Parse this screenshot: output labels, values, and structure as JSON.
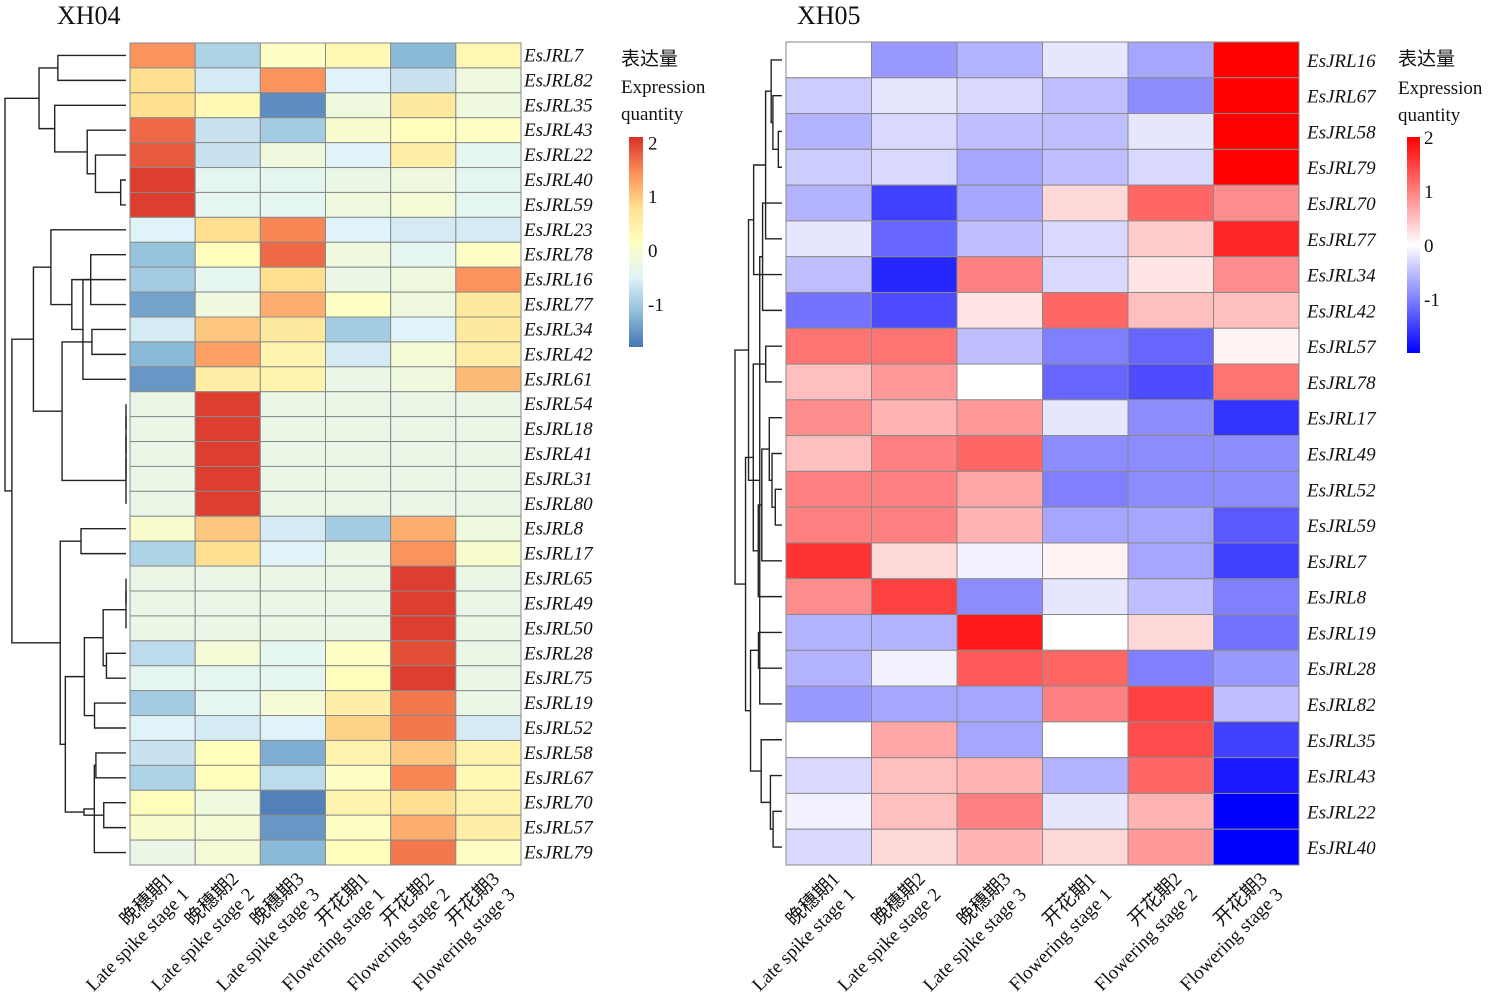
{
  "chart_data": [
    {
      "type": "heatmap",
      "title": "XH04",
      "columns": [
        {
          "zh": "晚穗期1",
          "en": "Late spike stage 1"
        },
        {
          "zh": "晚穗期2",
          "en": "Late spike stage 2"
        },
        {
          "zh": "晚穗期3",
          "en": "Late spike stage 3"
        },
        {
          "zh": "开花期1",
          "en": "Flowering stage 1"
        },
        {
          "zh": "开花期2",
          "en": "Flowering stage 2"
        },
        {
          "zh": "开花期3",
          "en": "Flowering stage 3"
        }
      ],
      "rows": [
        "EsJRL7",
        "EsJRL82",
        "EsJRL35",
        "EsJRL43",
        "EsJRL22",
        "EsJRL40",
        "EsJRL59",
        "EsJRL23",
        "EsJRL78",
        "EsJRL16",
        "EsJRL77",
        "EsJRL34",
        "EsJRL42",
        "EsJRL61",
        "EsJRL54",
        "EsJRL18",
        "EsJRL41",
        "EsJRL31",
        "EsJRL80",
        "EsJRL8",
        "EsJRL17",
        "EsJRL65",
        "EsJRL49",
        "EsJRL50",
        "EsJRL28",
        "EsJRL75",
        "EsJRL19",
        "EsJRL52",
        "EsJRL58",
        "EsJRL67",
        "EsJRL70",
        "EsJRL57",
        "EsJRL79"
      ],
      "values": [
        [
          1.4,
          -0.9,
          0.1,
          0.3,
          -1.2,
          0.3
        ],
        [
          0.8,
          -0.6,
          1.4,
          -0.5,
          -0.7,
          -0.2
        ],
        [
          0.8,
          0.3,
          -1.6,
          -0.2,
          0.6,
          -0.2
        ],
        [
          1.7,
          -0.7,
          -1.0,
          0.0,
          0.2,
          0.1
        ],
        [
          1.8,
          -0.7,
          -0.2,
          -0.5,
          0.5,
          -0.4
        ],
        [
          2.0,
          -0.4,
          -0.4,
          -0.3,
          -0.2,
          -0.4
        ],
        [
          2.0,
          -0.4,
          -0.4,
          -0.2,
          -0.1,
          -0.4
        ],
        [
          -0.5,
          0.8,
          1.5,
          -0.5,
          -0.6,
          -0.6
        ],
        [
          -1.1,
          0.2,
          1.7,
          -0.2,
          -0.4,
          0.1
        ],
        [
          -1.0,
          -0.4,
          0.8,
          -0.3,
          -0.2,
          1.4
        ],
        [
          -1.4,
          -0.2,
          1.2,
          0.1,
          -0.2,
          0.6
        ],
        [
          -0.6,
          1.0,
          0.6,
          -1.0,
          -0.5,
          0.6
        ],
        [
          -1.2,
          1.3,
          0.4,
          -0.6,
          -0.1,
          0.5
        ],
        [
          -1.5,
          0.5,
          0.4,
          -0.3,
          -0.2,
          1.1
        ],
        [
          -0.3,
          2.0,
          -0.3,
          -0.3,
          -0.3,
          -0.3
        ],
        [
          -0.3,
          2.0,
          -0.3,
          -0.3,
          -0.3,
          -0.3
        ],
        [
          -0.3,
          2.0,
          -0.3,
          -0.3,
          -0.3,
          -0.3
        ],
        [
          -0.3,
          2.0,
          -0.3,
          -0.3,
          -0.3,
          -0.3
        ],
        [
          -0.3,
          2.0,
          -0.3,
          -0.3,
          -0.3,
          -0.3
        ],
        [
          0.0,
          1.0,
          -0.6,
          -1.0,
          1.2,
          -0.2
        ],
        [
          -0.9,
          0.8,
          -0.5,
          -0.3,
          1.4,
          0.0
        ],
        [
          -0.3,
          -0.3,
          -0.3,
          -0.3,
          2.0,
          -0.3
        ],
        [
          -0.3,
          -0.3,
          -0.3,
          -0.3,
          2.0,
          -0.3
        ],
        [
          -0.3,
          -0.3,
          -0.3,
          -0.3,
          2.0,
          -0.3
        ],
        [
          -0.8,
          -0.1,
          -0.4,
          0.1,
          1.9,
          -0.3
        ],
        [
          -0.4,
          -0.4,
          -0.4,
          0.2,
          2.0,
          -0.3
        ],
        [
          -1.0,
          -0.4,
          -0.1,
          0.5,
          1.6,
          -0.3
        ],
        [
          -0.5,
          -0.6,
          -0.5,
          0.9,
          1.6,
          -0.6
        ],
        [
          -0.7,
          0.2,
          -1.3,
          0.4,
          1.0,
          0.4
        ],
        [
          -0.9,
          0.2,
          -0.8,
          0.1,
          1.5,
          0.3
        ],
        [
          0.2,
          -0.2,
          -1.7,
          0.4,
          0.8,
          0.4
        ],
        [
          0.0,
          -0.1,
          -1.5,
          0.1,
          1.2,
          0.5
        ],
        [
          -0.3,
          -0.1,
          -1.2,
          0.2,
          1.6,
          0.1
        ]
      ],
      "colorbar": {
        "title_zh": "表达量",
        "title_en": "Expression quantity",
        "ticks": [
          2,
          1,
          0,
          -1
        ],
        "range": [
          -1.8,
          2.1
        ],
        "colors": [
          "#4575b4",
          "#91bfdb",
          "#e0f3f8",
          "#ffffbf",
          "#fee090",
          "#fc8d59",
          "#d73027"
        ]
      },
      "dendrogram": "rows"
    },
    {
      "type": "heatmap",
      "title": "XH05",
      "columns": [
        {
          "zh": "晚穗期1",
          "en": "Late spike stage 1"
        },
        {
          "zh": "晚穗期2",
          "en": "Late spike stage 2"
        },
        {
          "zh": "晚穗期3",
          "en": "Late spike stage 3"
        },
        {
          "zh": "开花期1",
          "en": "Flowering stage 1"
        },
        {
          "zh": "开花期2",
          "en": "Flowering stage 2"
        },
        {
          "zh": "开花期3",
          "en": "Flowering stage 3"
        }
      ],
      "rows": [
        "EsJRL16",
        "EsJRL67",
        "EsJRL58",
        "EsJRL79",
        "EsJRL70",
        "EsJRL77",
        "EsJRL34",
        "EsJRL42",
        "EsJRL57",
        "EsJRL78",
        "EsJRL17",
        "EsJRL49",
        "EsJRL52",
        "EsJRL59",
        "EsJRL7",
        "EsJRL8",
        "EsJRL19",
        "EsJRL28",
        "EsJRL82",
        "EsJRL35",
        "EsJRL43",
        "EsJRL22",
        "EsJRL40"
      ],
      "values": [
        [
          0.0,
          -0.8,
          -0.6,
          -0.2,
          -0.7,
          2.0
        ],
        [
          -0.4,
          -0.2,
          -0.3,
          -0.5,
          -0.9,
          2.0
        ],
        [
          -0.6,
          -0.3,
          -0.5,
          -0.5,
          -0.2,
          2.0
        ],
        [
          -0.4,
          -0.3,
          -0.7,
          -0.5,
          -0.3,
          2.0
        ],
        [
          -0.6,
          -1.5,
          -0.7,
          0.3,
          1.2,
          0.9
        ],
        [
          -0.2,
          -1.2,
          -0.5,
          -0.3,
          0.4,
          1.7
        ],
        [
          -0.5,
          -1.7,
          1.0,
          -0.3,
          0.2,
          0.9
        ],
        [
          -1.1,
          -1.4,
          0.2,
          1.2,
          0.5,
          0.5
        ],
        [
          1.1,
          1.1,
          -0.5,
          -1.0,
          -1.2,
          0.1
        ],
        [
          0.5,
          0.8,
          0.0,
          -1.2,
          -1.4,
          1.1
        ],
        [
          0.9,
          0.6,
          0.8,
          -0.2,
          -0.9,
          -1.6
        ],
        [
          0.5,
          1.0,
          1.2,
          -0.9,
          -0.9,
          -0.9
        ],
        [
          1.0,
          1.0,
          0.7,
          -1.0,
          -0.9,
          -0.9
        ],
        [
          1.0,
          1.0,
          0.6,
          -0.7,
          -0.7,
          -1.3
        ],
        [
          1.6,
          0.3,
          -0.1,
          0.1,
          -0.7,
          -1.5
        ],
        [
          0.9,
          1.5,
          -0.9,
          -0.2,
          -0.5,
          -1.0
        ],
        [
          -0.6,
          -0.6,
          1.8,
          0.0,
          0.3,
          -1.1
        ],
        [
          -0.6,
          -0.1,
          1.3,
          1.2,
          -1.0,
          -0.8
        ],
        [
          -0.8,
          -0.7,
          -0.7,
          1.0,
          1.5,
          -0.5
        ],
        [
          0.0,
          0.7,
          -0.7,
          0.0,
          1.4,
          -1.5
        ],
        [
          -0.3,
          0.5,
          0.6,
          -0.6,
          1.2,
          -1.8
        ],
        [
          -0.1,
          0.5,
          1.0,
          -0.2,
          0.6,
          -2.0
        ],
        [
          -0.3,
          0.3,
          0.6,
          0.3,
          0.8,
          -2.0
        ]
      ],
      "colorbar": {
        "title_zh": "表达量",
        "title_en": "Expression quantity",
        "ticks": [
          2,
          1,
          0,
          -1
        ],
        "range": [
          -2.0,
          2.0
        ],
        "colors": [
          "#0000ff",
          "#ffffff",
          "#ff0000"
        ]
      },
      "dendrogram": "rows"
    }
  ]
}
